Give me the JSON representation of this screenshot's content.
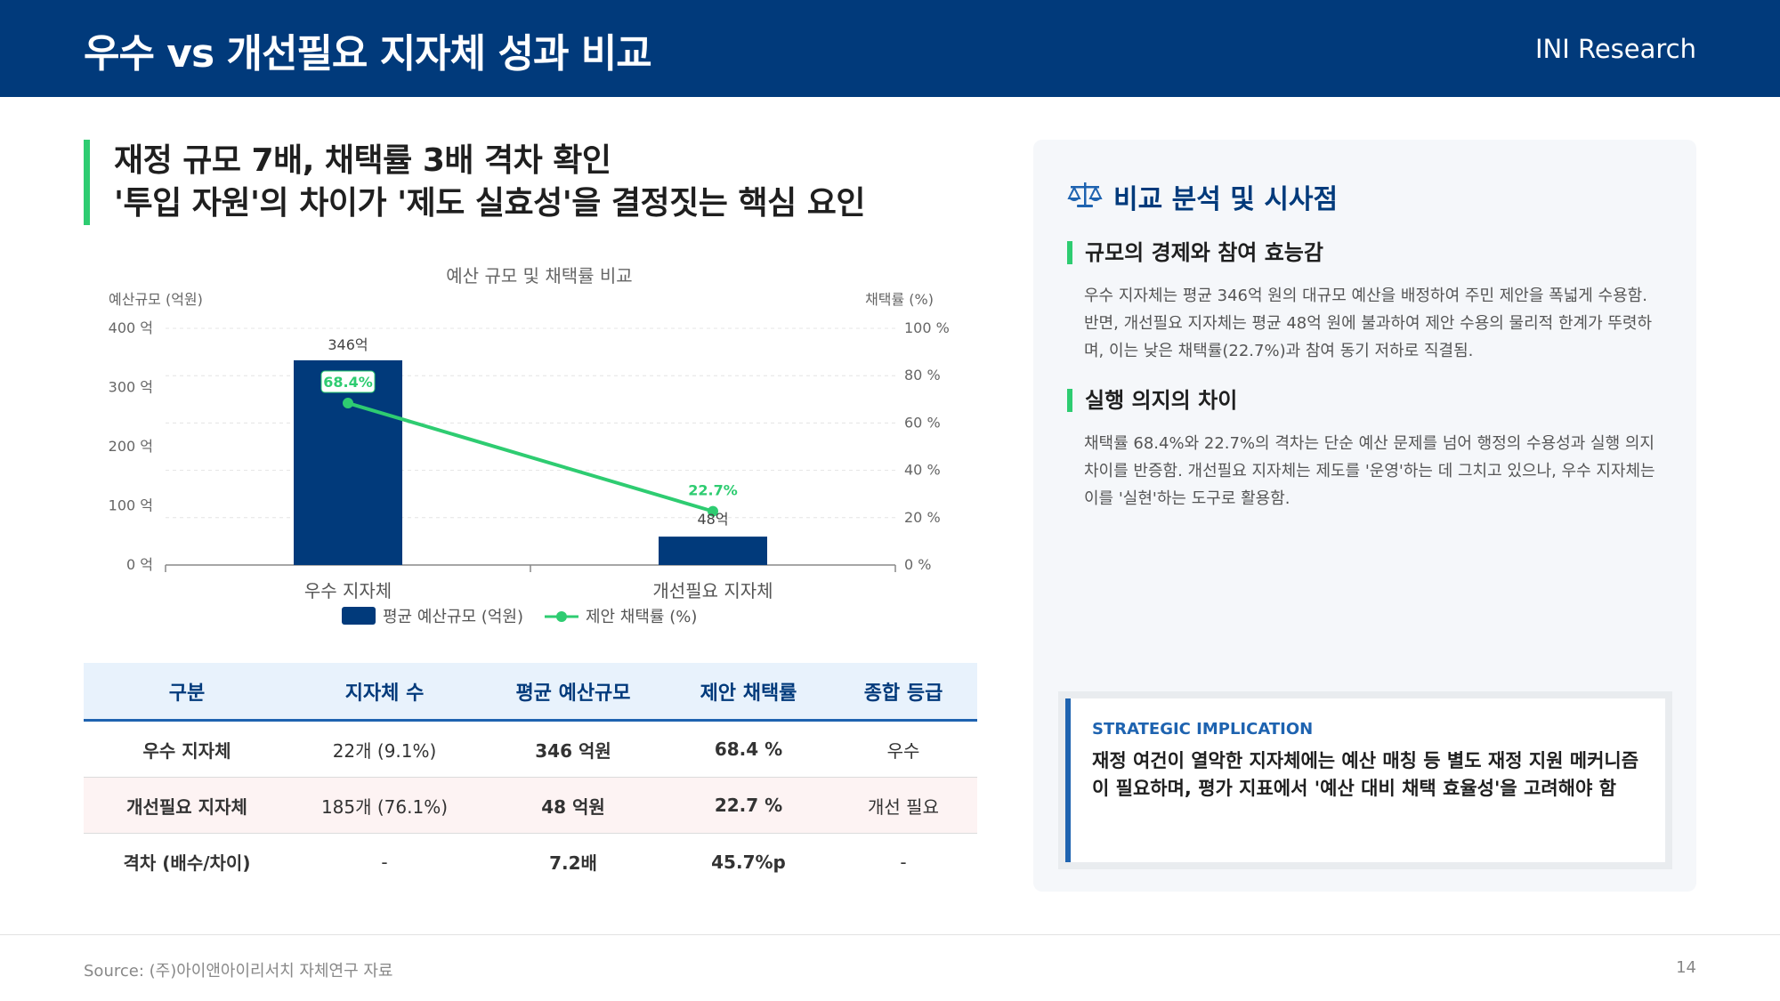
{
  "header": {
    "title": "우수 vs 개선필요 지자체 성과 비교",
    "brand": "INI Research"
  },
  "headline": {
    "line1": "재정 규모 7배, 채택률 3배 격차 확인",
    "line2": "'투입 자원'의 차이가 '제도 실효성'을 결정짓는 핵심 요인"
  },
  "chart_data": {
    "type": "bar",
    "title": "예산 규모 및 채택률 비교",
    "categories": [
      "우수 지자체",
      "개선필요 지자체"
    ],
    "ylabel": "예산규모 (억원)",
    "y2label": "채택률 (%)",
    "ylim": [
      0,
      400
    ],
    "y2lim": [
      0,
      100
    ],
    "y_ticks": [
      "400 억",
      "300 억",
      "200 억",
      "100 억",
      "0 억"
    ],
    "y2_ticks": [
      "100 %",
      "80 %",
      "60 %",
      "40 %",
      "20 %",
      "0 %"
    ],
    "grid": true,
    "legend_position": "bottom",
    "series": [
      {
        "name": "평균 예산규모 (억원)",
        "kind": "bar",
        "axis": "left",
        "values": [
          346,
          48
        ],
        "labels": [
          "346억",
          "48억"
        ],
        "color": "#013a7b"
      },
      {
        "name": "제안 채택률 (%)",
        "kind": "line",
        "axis": "right",
        "values": [
          68.4,
          22.7
        ],
        "labels": [
          "68.4%",
          "22.7%"
        ],
        "color": "#2ecc71"
      }
    ]
  },
  "table": {
    "headers": [
      "구분",
      "지자체 수",
      "평균 예산규모",
      "제안 채택률",
      "종합 등급"
    ],
    "rows": [
      [
        "우수 지자체",
        "22개 (9.1%)",
        "346 억원",
        "68.4 %",
        "우수"
      ],
      [
        "개선필요 지자체",
        "185개 (76.1%)",
        "48 억원",
        "22.7 %",
        "개선 필요"
      ],
      [
        "격차 (배수/차이)",
        "-",
        "7.2배",
        "45.7%p",
        "-"
      ]
    ]
  },
  "panel": {
    "title": "비교 분석 및 시사점",
    "icon": "balance-scale-icon",
    "sections": [
      {
        "heading": "규모의 경제와 참여 효능감",
        "body": "우수 지자체는 평균 346억 원의 대규모 예산을 배정하여 주민 제안을 폭넓게 수용함. 반면, 개선필요 지자체는 평균 48억 원에 불과하여 제안 수용의 물리적 한계가 뚜렷하며, 이는 낮은 채택률(22.7%)과 참여 동기 저하로 직결됨."
      },
      {
        "heading": "실행 의지의 차이",
        "body": "채택률 68.4%와 22.7%의 격차는 단순 예산 문제를 넘어 행정의 수용성과 실행 의지 차이를 반증함. 개선필요 지자체는 제도를 '운영'하는 데 그치고 있으나, 우수 지자체는 이를 '실현'하는 도구로 활용함."
      }
    ],
    "implication": {
      "label": "STRATEGIC IMPLICATION",
      "text": "재정 여건이 열악한 지자체에는 예산 매칭 등 별도 재정 지원 메커니즘이 필요하며, 평가 지표에서 '예산 대비 채택 효율성'을 고려해야 함"
    }
  },
  "footer": {
    "source": "Source: (주)아이앤아이리서치 자체연구 자료",
    "page": "14"
  },
  "colors": {
    "primary": "#013a7b",
    "accent_green": "#2ecc71",
    "accent_blue": "#1e63b0"
  }
}
